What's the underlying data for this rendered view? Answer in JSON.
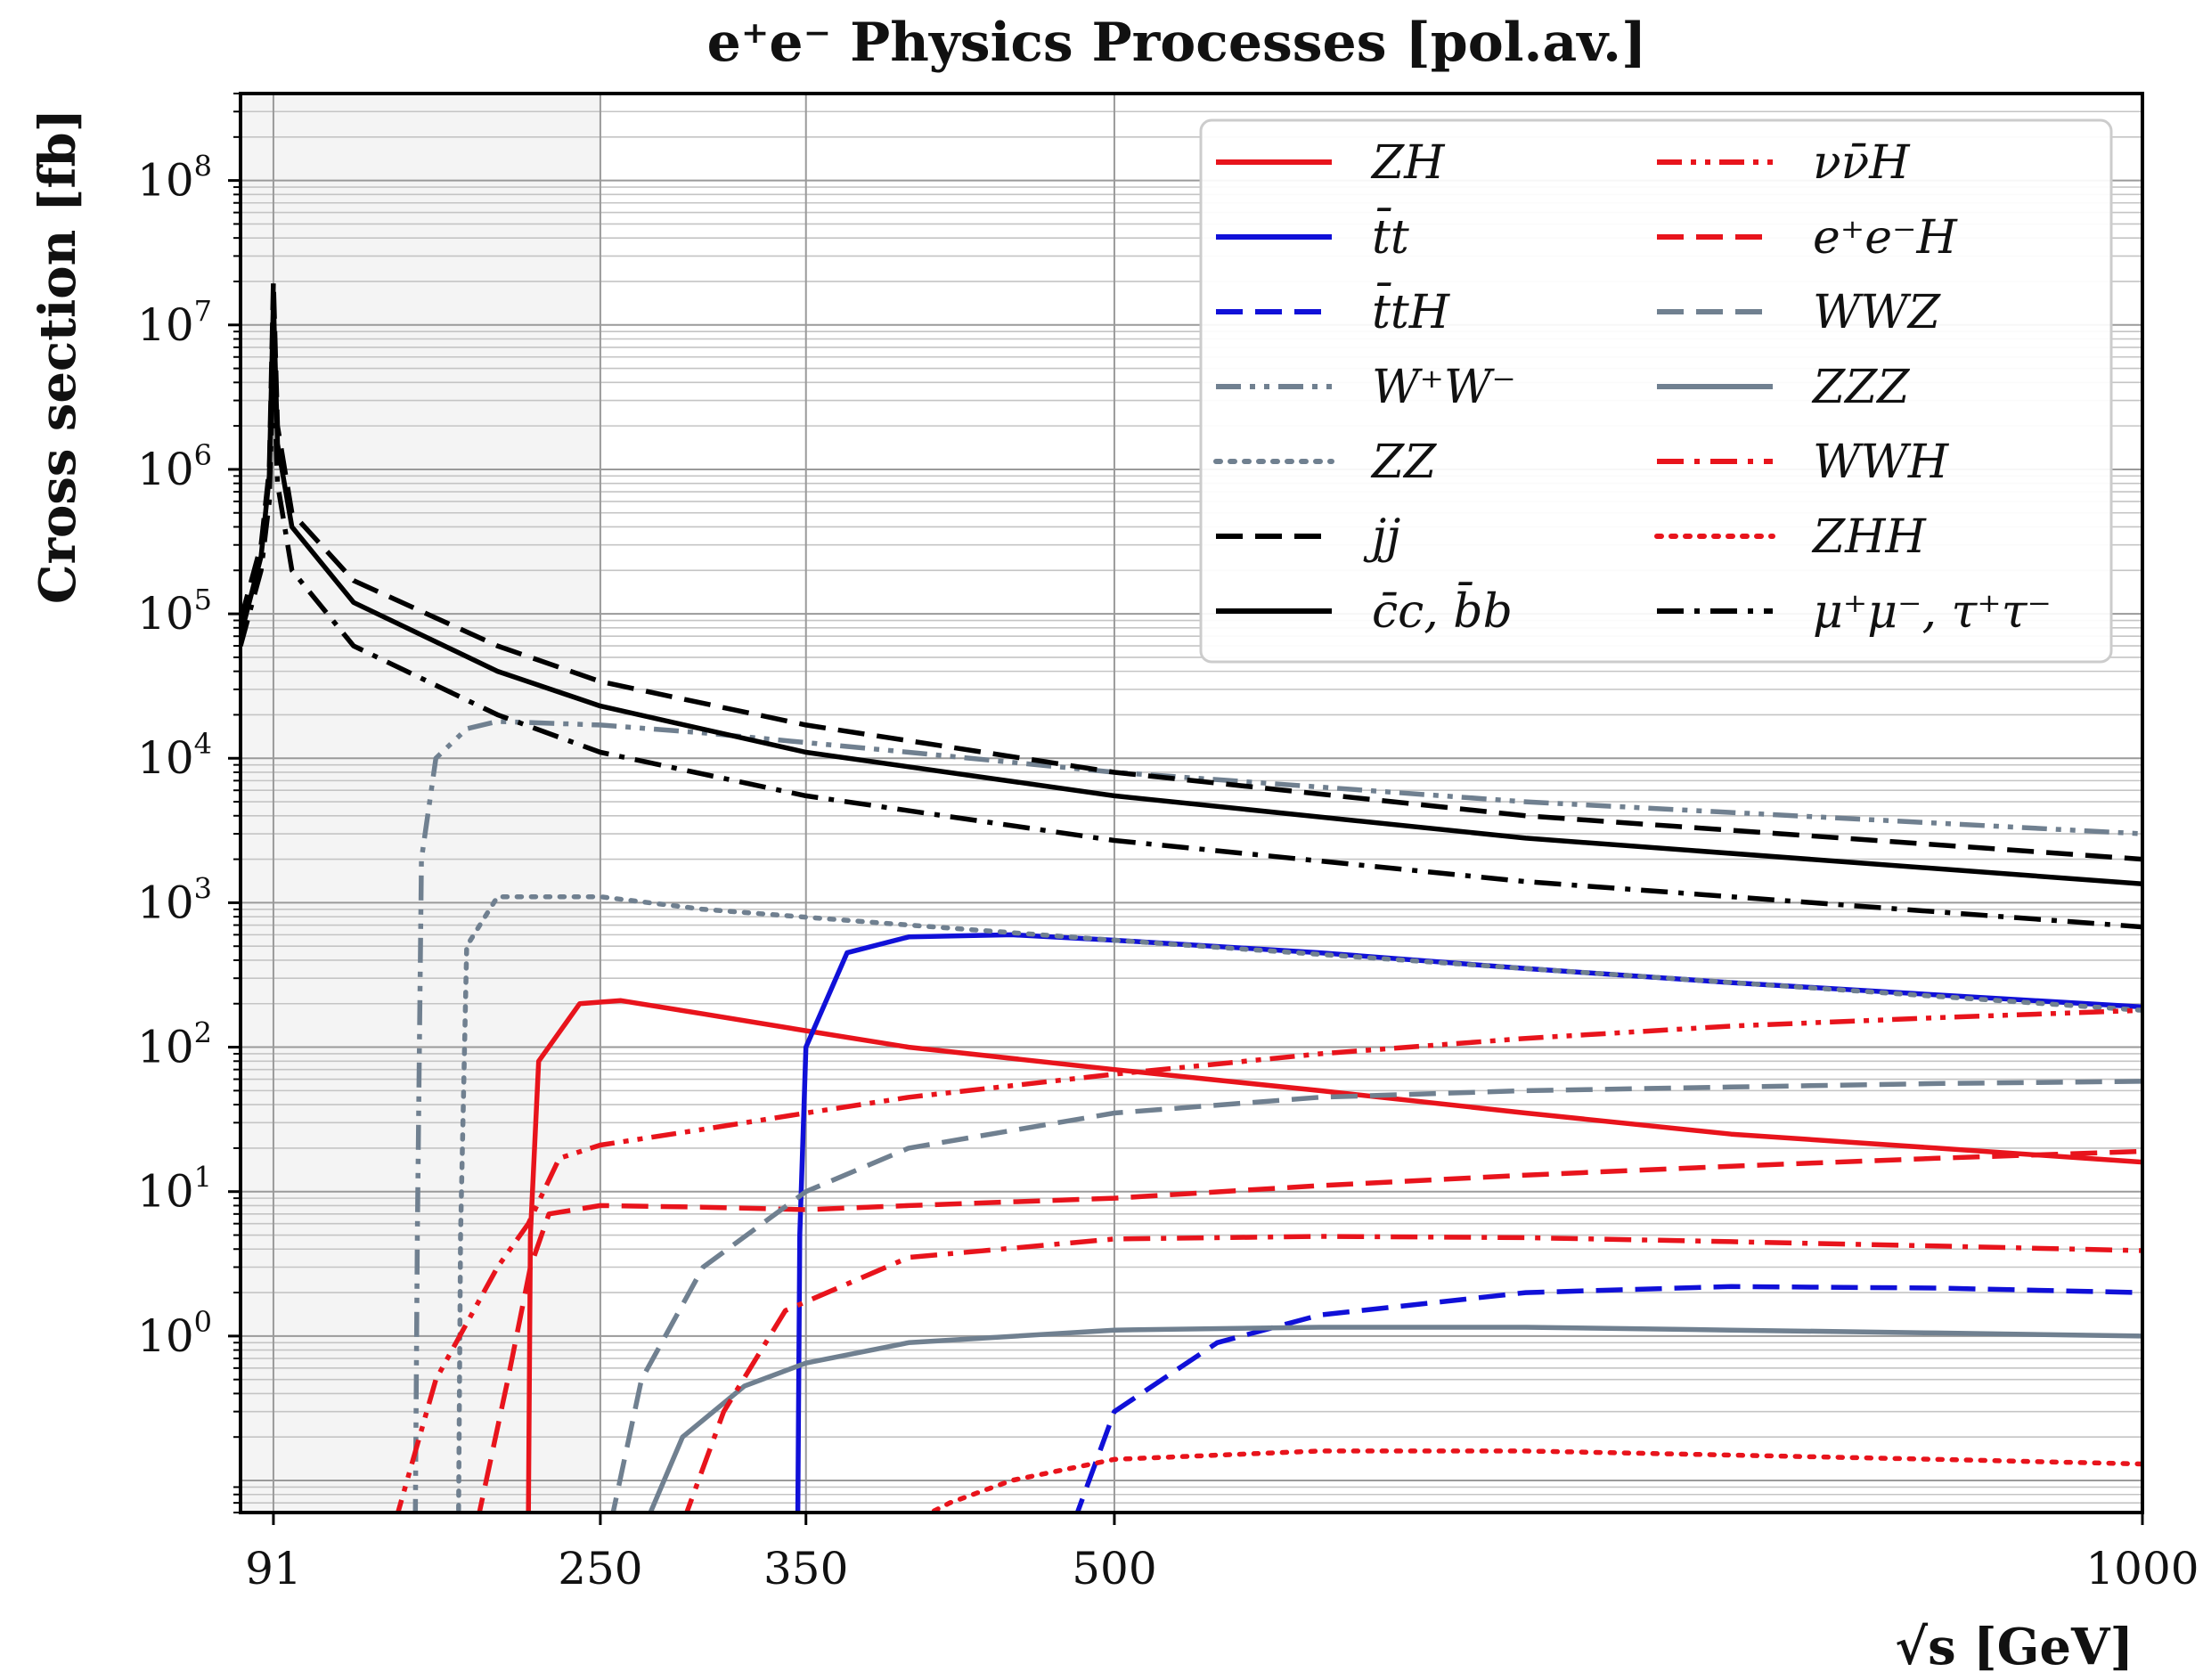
{
  "chart_data": {
    "type": "line",
    "title": "e⁺e⁻ Physics Processes [pol.av.]",
    "xlabel": "√s  [GeV]",
    "ylabel": "Cross section [fb]",
    "x_ticks": [
      91,
      250,
      350,
      500,
      1000
    ],
    "x_tick_labels": [
      "91",
      "250",
      "350",
      "500",
      "1000"
    ],
    "y_tick_labels": [
      {
        "base": "10",
        "exp": "8",
        "value": 100000000
      },
      {
        "base": "10",
        "exp": "7",
        "value": 10000000
      },
      {
        "base": "10",
        "exp": "6",
        "value": 1000000
      },
      {
        "base": "10",
        "exp": "5",
        "value": 100000
      },
      {
        "base": "10",
        "exp": "4",
        "value": 10000
      },
      {
        "base": "10",
        "exp": "3",
        "value": 1000
      },
      {
        "base": "10",
        "exp": "2",
        "value": 100
      },
      {
        "base": "10",
        "exp": "1",
        "value": 10
      },
      {
        "base": "10",
        "exp": "0",
        "value": 1
      }
    ],
    "xlim": [
      75,
      1000
    ],
    "ylim": [
      0.06,
      400000000
    ],
    "yscale": "log",
    "grid": true,
    "shaded_region_x": [
      75,
      250
    ],
    "legend_position": "top-right",
    "series": [
      {
        "name": "ZH",
        "color": "#e8141c",
        "dash": "solid",
        "points": [
          [
            215,
            0.05
          ],
          [
            216,
            5
          ],
          [
            220,
            80
          ],
          [
            240,
            200
          ],
          [
            260,
            210
          ],
          [
            300,
            170
          ],
          [
            350,
            130
          ],
          [
            400,
            100
          ],
          [
            500,
            70
          ],
          [
            600,
            50
          ],
          [
            700,
            35
          ],
          [
            800,
            25
          ],
          [
            900,
            20
          ],
          [
            1000,
            16
          ]
        ]
      },
      {
        "name": "t̄t",
        "color": "#1010d8",
        "dash": "solid",
        "points": [
          [
            346,
            0.05
          ],
          [
            347,
            5
          ],
          [
            350,
            100
          ],
          [
            370,
            450
          ],
          [
            400,
            580
          ],
          [
            450,
            600
          ],
          [
            500,
            550
          ],
          [
            600,
            450
          ],
          [
            700,
            350
          ],
          [
            800,
            280
          ],
          [
            900,
            230
          ],
          [
            1000,
            190
          ]
        ]
      },
      {
        "name": "t̄tH",
        "color": "#1010d8",
        "dash": "dash",
        "points": [
          [
            480,
            0.05
          ],
          [
            500,
            0.3
          ],
          [
            550,
            0.9
          ],
          [
            600,
            1.4
          ],
          [
            700,
            2.0
          ],
          [
            800,
            2.2
          ],
          [
            900,
            2.15
          ],
          [
            1000,
            2.0
          ]
        ]
      },
      {
        "name": "W⁺W⁻",
        "color": "#708090",
        "dash": "dashdotdot",
        "points": [
          [
            160,
            0.05
          ],
          [
            161,
            5
          ],
          [
            163,
            2000
          ],
          [
            170,
            10000
          ],
          [
            185,
            16000
          ],
          [
            200,
            18000
          ],
          [
            250,
            17000
          ],
          [
            300,
            15000
          ],
          [
            400,
            11000
          ],
          [
            500,
            8000
          ],
          [
            700,
            5000
          ],
          [
            1000,
            3000
          ]
        ]
      },
      {
        "name": "ZZ",
        "color": "#708090",
        "dash": "dot",
        "points": [
          [
            181,
            0.05
          ],
          [
            182,
            5
          ],
          [
            185,
            500
          ],
          [
            200,
            1100
          ],
          [
            250,
            1100
          ],
          [
            300,
            900
          ],
          [
            400,
            700
          ],
          [
            500,
            550
          ],
          [
            700,
            350
          ],
          [
            1000,
            180
          ]
        ]
      },
      {
        "name": "jj",
        "color": "#000000",
        "dash": "dash",
        "points": [
          [
            75,
            90000
          ],
          [
            85,
            300000
          ],
          [
            89,
            1000000
          ],
          [
            91,
            20000000
          ],
          [
            93,
            2000000
          ],
          [
            100,
            500000
          ],
          [
            130,
            170000
          ],
          [
            200,
            60000
          ],
          [
            250,
            34000
          ],
          [
            350,
            17000
          ],
          [
            500,
            8000
          ],
          [
            700,
            4000
          ],
          [
            1000,
            2000
          ]
        ]
      },
      {
        "name": "c̄c, b̄b",
        "color": "#000000",
        "dash": "solid",
        "points": [
          [
            75,
            70000
          ],
          [
            85,
            250000
          ],
          [
            89,
            900000
          ],
          [
            91,
            15000000
          ],
          [
            93,
            1500000
          ],
          [
            100,
            400000
          ],
          [
            130,
            120000
          ],
          [
            200,
            40000
          ],
          [
            250,
            23000
          ],
          [
            350,
            11000
          ],
          [
            500,
            5500
          ],
          [
            700,
            2800
          ],
          [
            1000,
            1350
          ]
        ]
      },
      {
        "name": "νν̄H",
        "color": "#e8141c",
        "dash": "dashdotdot",
        "points": [
          [
            150,
            0.05
          ],
          [
            170,
            0.5
          ],
          [
            200,
            3
          ],
          [
            215,
            6
          ],
          [
            230,
            17
          ],
          [
            250,
            21
          ],
          [
            300,
            27
          ],
          [
            350,
            35
          ],
          [
            400,
            45
          ],
          [
            500,
            65
          ],
          [
            600,
            90
          ],
          [
            700,
            115
          ],
          [
            800,
            140
          ],
          [
            900,
            160
          ],
          [
            1000,
            180
          ]
        ]
      },
      {
        "name": "e⁺e⁻H",
        "color": "#e8141c",
        "dash": "dash",
        "points": [
          [
            190,
            0.05
          ],
          [
            205,
            0.5
          ],
          [
            216,
            3
          ],
          [
            225,
            7
          ],
          [
            250,
            8
          ],
          [
            300,
            7.8
          ],
          [
            350,
            7.5
          ],
          [
            400,
            8
          ],
          [
            500,
            9
          ],
          [
            600,
            11
          ],
          [
            700,
            13
          ],
          [
            800,
            15
          ],
          [
            900,
            17
          ],
          [
            1000,
            19
          ]
        ]
      },
      {
        "name": "WWZ",
        "color": "#708090",
        "dash": "dash",
        "points": [
          [
            255,
            0.05
          ],
          [
            270,
            0.5
          ],
          [
            300,
            3
          ],
          [
            350,
            10
          ],
          [
            400,
            20
          ],
          [
            500,
            35
          ],
          [
            600,
            45
          ],
          [
            700,
            50
          ],
          [
            800,
            53
          ],
          [
            900,
            56
          ],
          [
            1000,
            58
          ]
        ]
      },
      {
        "name": "ZZZ",
        "color": "#708090",
        "dash": "solid",
        "points": [
          [
            272,
            0.05
          ],
          [
            290,
            0.2
          ],
          [
            320,
            0.45
          ],
          [
            350,
            0.65
          ],
          [
            400,
            0.9
          ],
          [
            500,
            1.1
          ],
          [
            600,
            1.15
          ],
          [
            700,
            1.15
          ],
          [
            800,
            1.1
          ],
          [
            900,
            1.05
          ],
          [
            1000,
            1.0
          ]
        ]
      },
      {
        "name": "WWH",
        "color": "#e8141c",
        "dash": "dashdot",
        "points": [
          [
            290,
            0.05
          ],
          [
            310,
            0.3
          ],
          [
            340,
            1.5
          ],
          [
            400,
            3.5
          ],
          [
            500,
            4.7
          ],
          [
            600,
            4.9
          ],
          [
            700,
            4.8
          ],
          [
            800,
            4.5
          ],
          [
            900,
            4.2
          ],
          [
            1000,
            3.9
          ]
        ]
      },
      {
        "name": "ZHH",
        "color": "#e8141c",
        "dash": "dot",
        "points": [
          [
            400,
            0.05
          ],
          [
            420,
            0.07
          ],
          [
            450,
            0.1
          ],
          [
            500,
            0.14
          ],
          [
            600,
            0.16
          ],
          [
            700,
            0.16
          ],
          [
            800,
            0.15
          ],
          [
            900,
            0.14
          ],
          [
            1000,
            0.13
          ]
        ]
      },
      {
        "name": "μ⁺μ⁻, τ⁺τ⁻",
        "color": "#000000",
        "dash": "dashdot",
        "points": [
          [
            75,
            60000
          ],
          [
            85,
            200000
          ],
          [
            89,
            600000
          ],
          [
            91,
            6000000
          ],
          [
            93,
            800000
          ],
          [
            100,
            200000
          ],
          [
            130,
            60000
          ],
          [
            200,
            20000
          ],
          [
            250,
            11000
          ],
          [
            350,
            5500
          ],
          [
            500,
            2700
          ],
          [
            700,
            1400
          ],
          [
            1000,
            680
          ]
        ]
      }
    ]
  }
}
